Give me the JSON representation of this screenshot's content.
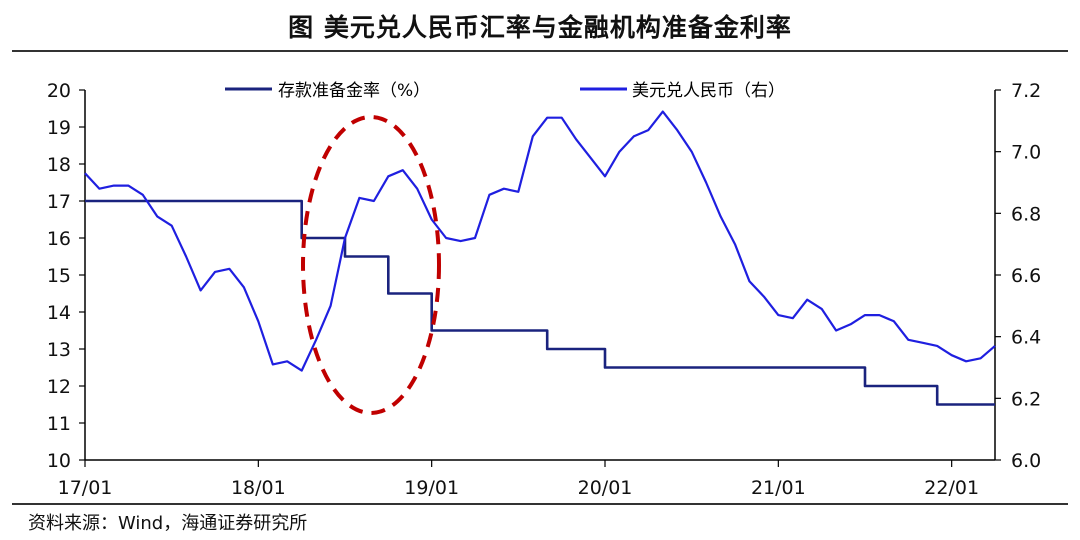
{
  "title": "图  美元兑人民币汇率与金融机构准备金利率",
  "source": "资料来源：Wind，海通证券研究所",
  "colors": {
    "reserve": "#1a237e",
    "usdcny": "#1f1fe0",
    "circle": "#c00000",
    "axis": "#000000"
  },
  "chart_data": {
    "type": "line",
    "x_ticks": [
      "17/01",
      "18/01",
      "19/01",
      "20/01",
      "21/01",
      "22/01"
    ],
    "xlim": [
      "2017-01",
      "2022-04"
    ],
    "y_left": {
      "lim": [
        10,
        20
      ],
      "ticks": [
        "10",
        "11",
        "12",
        "13",
        "14",
        "15",
        "16",
        "17",
        "18",
        "19",
        "20"
      ]
    },
    "y_right": {
      "lim": [
        6.0,
        7.2
      ],
      "ticks": [
        "6.0",
        "6.2",
        "6.4",
        "6.6",
        "6.8",
        "7.0",
        "7.2"
      ]
    },
    "legend": [
      "存款准备金率（%）",
      "美元兑人民币（右）"
    ],
    "annotations": [
      "dashed red ellipse around 2018-04 to 2018-12"
    ],
    "series": [
      {
        "name": "存款准备金率（%）",
        "axis": "left",
        "step": true,
        "points": [
          [
            "2017-01",
            17.0
          ],
          [
            "2018-04",
            17.0
          ],
          [
            "2018-04",
            16.0
          ],
          [
            "2018-07",
            16.0
          ],
          [
            "2018-07",
            15.5
          ],
          [
            "2018-10",
            15.5
          ],
          [
            "2018-10",
            14.5
          ],
          [
            "2019-01",
            14.5
          ],
          [
            "2019-01",
            13.5
          ],
          [
            "2019-09",
            13.5
          ],
          [
            "2019-09",
            13.0
          ],
          [
            "2020-01",
            13.0
          ],
          [
            "2020-01",
            12.5
          ],
          [
            "2021-07",
            12.5
          ],
          [
            "2021-07",
            12.0
          ],
          [
            "2021-12",
            12.0
          ],
          [
            "2021-12",
            11.5
          ],
          [
            "2022-04",
            11.5
          ]
        ]
      },
      {
        "name": "美元兑人民币（右）",
        "axis": "right",
        "points": [
          [
            "2017-01",
            6.93
          ],
          [
            "2017-02",
            6.88
          ],
          [
            "2017-03",
            6.89
          ],
          [
            "2017-04",
            6.89
          ],
          [
            "2017-05",
            6.86
          ],
          [
            "2017-06",
            6.79
          ],
          [
            "2017-07",
            6.76
          ],
          [
            "2017-08",
            6.66
          ],
          [
            "2017-09",
            6.55
          ],
          [
            "2017-10",
            6.61
          ],
          [
            "2017-11",
            6.62
          ],
          [
            "2017-12",
            6.56
          ],
          [
            "2018-01",
            6.45
          ],
          [
            "2018-02",
            6.31
          ],
          [
            "2018-03",
            6.32
          ],
          [
            "2018-04",
            6.29
          ],
          [
            "2018-05",
            6.39
          ],
          [
            "2018-06",
            6.5
          ],
          [
            "2018-07",
            6.72
          ],
          [
            "2018-08",
            6.85
          ],
          [
            "2018-09",
            6.84
          ],
          [
            "2018-10",
            6.92
          ],
          [
            "2018-11",
            6.94
          ],
          [
            "2018-12",
            6.88
          ],
          [
            "2019-01",
            6.78
          ],
          [
            "2019-02",
            6.72
          ],
          [
            "2019-03",
            6.71
          ],
          [
            "2019-04",
            6.72
          ],
          [
            "2019-05",
            6.86
          ],
          [
            "2019-06",
            6.88
          ],
          [
            "2019-07",
            6.87
          ],
          [
            "2019-08",
            7.05
          ],
          [
            "2019-09",
            7.11
          ],
          [
            "2019-10",
            7.11
          ],
          [
            "2019-11",
            7.04
          ],
          [
            "2019-12",
            6.98
          ],
          [
            "2020-01",
            6.92
          ],
          [
            "2020-02",
            7.0
          ],
          [
            "2020-03",
            7.05
          ],
          [
            "2020-04",
            7.07
          ],
          [
            "2020-05",
            7.13
          ],
          [
            "2020-06",
            7.07
          ],
          [
            "2020-07",
            7.0
          ],
          [
            "2020-08",
            6.9
          ],
          [
            "2020-09",
            6.79
          ],
          [
            "2020-10",
            6.7
          ],
          [
            "2020-11",
            6.58
          ],
          [
            "2020-12",
            6.53
          ],
          [
            "2021-01",
            6.47
          ],
          [
            "2021-02",
            6.46
          ],
          [
            "2021-03",
            6.52
          ],
          [
            "2021-04",
            6.49
          ],
          [
            "2021-05",
            6.42
          ],
          [
            "2021-06",
            6.44
          ],
          [
            "2021-07",
            6.47
          ],
          [
            "2021-08",
            6.47
          ],
          [
            "2021-09",
            6.45
          ],
          [
            "2021-10",
            6.39
          ],
          [
            "2021-11",
            6.38
          ],
          [
            "2021-12",
            6.37
          ],
          [
            "2022-01",
            6.34
          ],
          [
            "2022-02",
            6.32
          ],
          [
            "2022-03",
            6.33
          ],
          [
            "2022-04",
            6.37
          ]
        ]
      }
    ]
  }
}
